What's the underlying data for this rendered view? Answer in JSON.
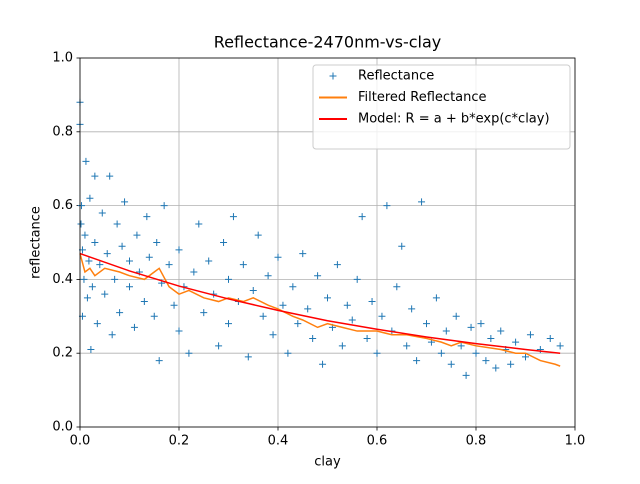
{
  "chart_data": {
    "type": "scatter",
    "title": "Reflectance-2470nm-vs-clay",
    "xlabel": "clay",
    "ylabel": "reflectance",
    "xlim": [
      0,
      1
    ],
    "ylim": [
      0,
      1
    ],
    "xticks": [
      {
        "value": 0,
        "label": "0.0"
      },
      0.2,
      0.4,
      0.6,
      0.8,
      {
        "value": 1,
        "label": "1.0"
      }
    ],
    "yticks": [
      {
        "value": 0,
        "label": "0.0"
      },
      0.2,
      0.4,
      0.6,
      0.8,
      {
        "value": 1,
        "label": "1.0"
      }
    ],
    "grid": true,
    "legend": "upper right",
    "series": [
      {
        "name": "Reflectance",
        "color": "#1f77b4",
        "mode": "markers",
        "x": [
          0,
          0,
          0.002,
          0.003,
          0.005,
          0.005,
          0.008,
          0.01,
          0.012,
          0.015,
          0.018,
          0.02,
          0.022,
          0.025,
          0.03,
          0.03,
          0.035,
          0.04,
          0.045,
          0.05,
          0.055,
          0.06,
          0.065,
          0.07,
          0.075,
          0.08,
          0.085,
          0.09,
          0.1,
          0.1,
          0.11,
          0.115,
          0.12,
          0.13,
          0.135,
          0.14,
          0.15,
          0.155,
          0.16,
          0.165,
          0.17,
          0.18,
          0.19,
          0.2,
          0.2,
          0.21,
          0.22,
          0.23,
          0.24,
          0.25,
          0.26,
          0.27,
          0.28,
          0.29,
          0.3,
          0.3,
          0.31,
          0.32,
          0.33,
          0.34,
          0.35,
          0.36,
          0.37,
          0.38,
          0.39,
          0.4,
          0.41,
          0.42,
          0.43,
          0.44,
          0.45,
          0.46,
          0.47,
          0.48,
          0.49,
          0.5,
          0.51,
          0.52,
          0.53,
          0.54,
          0.55,
          0.56,
          0.57,
          0.58,
          0.59,
          0.6,
          0.61,
          0.62,
          0.63,
          0.64,
          0.65,
          0.66,
          0.67,
          0.68,
          0.69,
          0.7,
          0.71,
          0.72,
          0.73,
          0.74,
          0.75,
          0.76,
          0.77,
          0.78,
          0.79,
          0.8,
          0.81,
          0.82,
          0.83,
          0.84,
          0.85,
          0.86,
          0.87,
          0.88,
          0.9,
          0.91,
          0.93,
          0.95,
          0.97
        ],
        "values": [
          0.88,
          0.82,
          0.55,
          0.6,
          0.48,
          0.3,
          0.4,
          0.52,
          0.72,
          0.35,
          0.45,
          0.62,
          0.21,
          0.38,
          0.68,
          0.5,
          0.28,
          0.44,
          0.58,
          0.36,
          0.47,
          0.68,
          0.25,
          0.4,
          0.55,
          0.31,
          0.49,
          0.61,
          0.38,
          0.45,
          0.27,
          0.52,
          0.42,
          0.34,
          0.57,
          0.46,
          0.3,
          0.5,
          0.18,
          0.39,
          0.6,
          0.44,
          0.33,
          0.26,
          0.48,
          0.38,
          0.2,
          0.42,
          0.55,
          0.31,
          0.45,
          0.36,
          0.22,
          0.5,
          0.4,
          0.28,
          0.57,
          0.34,
          0.44,
          0.19,
          0.37,
          0.52,
          0.3,
          0.41,
          0.25,
          0.46,
          0.33,
          0.2,
          0.38,
          0.28,
          0.47,
          0.32,
          0.24,
          0.41,
          0.17,
          0.35,
          0.27,
          0.44,
          0.22,
          0.33,
          0.29,
          0.4,
          0.57,
          0.24,
          0.34,
          0.2,
          0.3,
          0.6,
          0.26,
          0.38,
          0.49,
          0.22,
          0.32,
          0.18,
          0.61,
          0.28,
          0.23,
          0.35,
          0.2,
          0.26,
          0.17,
          0.3,
          0.22,
          0.14,
          0.27,
          0.2,
          0.28,
          0.18,
          0.24,
          0.16,
          0.26,
          0.21,
          0.17,
          0.23,
          0.19,
          0.25,
          0.21,
          0.24,
          0.22
        ]
      },
      {
        "name": "Filtered Reflectance",
        "color": "#ff7f0e",
        "mode": "line",
        "x": [
          0,
          0.01,
          0.02,
          0.03,
          0.05,
          0.08,
          0.1,
          0.13,
          0.15,
          0.16,
          0.18,
          0.2,
          0.22,
          0.25,
          0.28,
          0.3,
          0.33,
          0.35,
          0.38,
          0.4,
          0.43,
          0.45,
          0.48,
          0.5,
          0.53,
          0.56,
          0.6,
          0.63,
          0.66,
          0.7,
          0.73,
          0.75,
          0.77,
          0.8,
          0.85,
          0.88,
          0.9,
          0.93,
          0.96,
          0.97
        ],
        "values": [
          0.47,
          0.42,
          0.43,
          0.41,
          0.43,
          0.42,
          0.41,
          0.4,
          0.42,
          0.43,
          0.38,
          0.36,
          0.37,
          0.35,
          0.34,
          0.35,
          0.34,
          0.35,
          0.33,
          0.32,
          0.3,
          0.29,
          0.27,
          0.28,
          0.27,
          0.26,
          0.26,
          0.25,
          0.25,
          0.24,
          0.23,
          0.22,
          0.23,
          0.22,
          0.21,
          0.2,
          0.2,
          0.18,
          0.17,
          0.165
        ]
      },
      {
        "name": "Model: R = a + b*exp(c*clay)",
        "color": "#ff0000",
        "mode": "line",
        "x": [
          0,
          0.1,
          0.2,
          0.3,
          0.4,
          0.5,
          0.6,
          0.7,
          0.8,
          0.9,
          0.97
        ],
        "values": [
          0.47,
          0.423,
          0.382,
          0.347,
          0.316,
          0.288,
          0.265,
          0.244,
          0.226,
          0.21,
          0.2
        ]
      }
    ]
  }
}
